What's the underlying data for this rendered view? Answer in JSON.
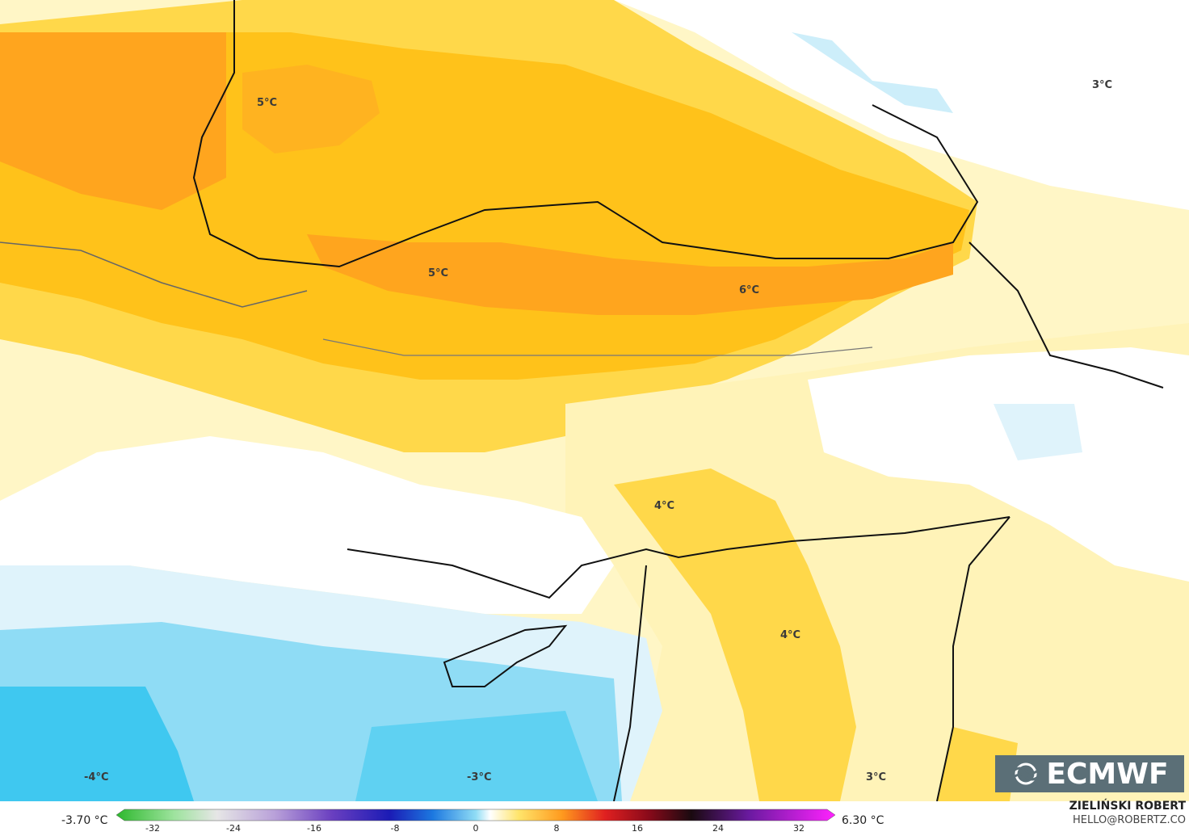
{
  "map": {
    "contour_labels": [
      "5°C",
      "5°C",
      "6°C",
      "3°C",
      "4°C",
      "4°C",
      "3°C",
      "-4°C",
      "-3°C"
    ]
  },
  "logo": {
    "text": "ECMWF"
  },
  "legend": {
    "min_label": "-3.70 °C",
    "max_label": "6.30 °C",
    "ticks": [
      "-32",
      "-24",
      "-16",
      "-8",
      "0",
      "8",
      "16",
      "24",
      "32"
    ],
    "colors": {
      "cold_deep": "#3fc8f0",
      "cold": "#8fdcf5",
      "cool": "#dff3fb",
      "neutral": "#ffffff",
      "warm_pale": "#fff3b8",
      "warm": "#ffd84a",
      "warm_mid": "#ffc21a",
      "hot": "#ffa51e"
    }
  },
  "credit": {
    "author": "ZIELIŃSKI ROBERT",
    "contact": "HELLO@ROBERTZ.CO"
  }
}
